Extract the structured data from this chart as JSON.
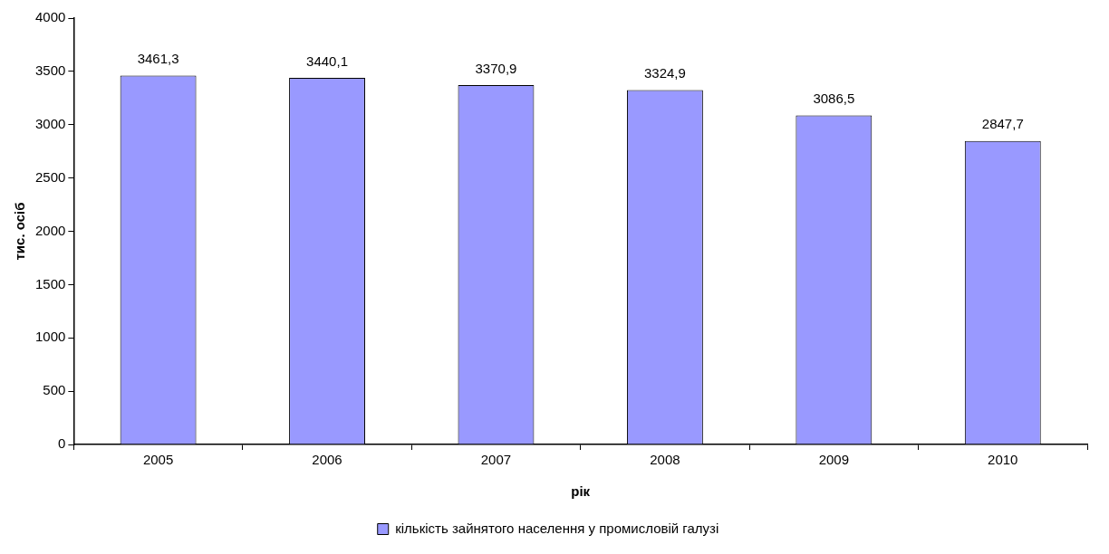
{
  "chart_data": {
    "type": "bar",
    "xlabel": "рік",
    "ylabel": "тис. осіб",
    "categories": [
      "2005",
      "2006",
      "2007",
      "2008",
      "2009",
      "2010"
    ],
    "series": [
      {
        "name": "кількість зайнятого населення у промисловій галузі",
        "color": "#9999ff",
        "values": [
          3461.3,
          3440.1,
          3370.9,
          3324.9,
          3086.5,
          2847.7
        ],
        "value_labels": [
          "3461,3",
          "3440,1",
          "3370,9",
          "3324,9",
          "3086,5",
          "2847,7"
        ]
      }
    ],
    "ylim": [
      0,
      4000
    ],
    "yticks": [
      0,
      500,
      1000,
      1500,
      2000,
      2500,
      3000,
      3500,
      4000
    ],
    "grid": false,
    "legend": "bottom"
  }
}
